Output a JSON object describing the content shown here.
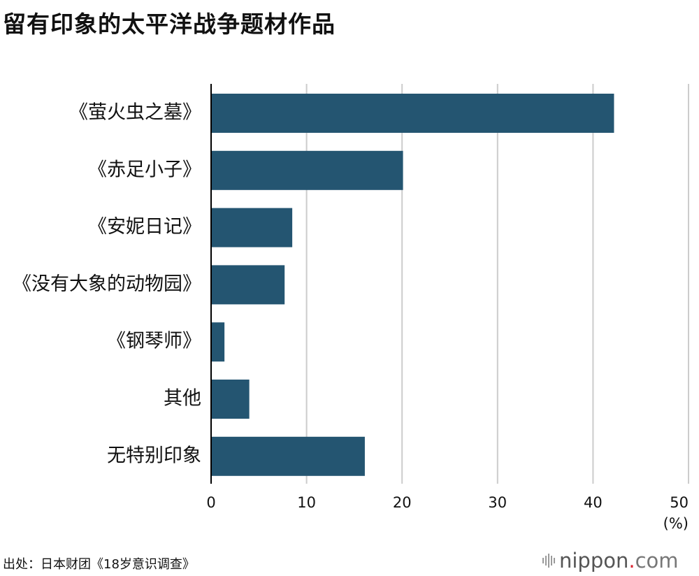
{
  "title": "留有印象的太平洋战争题材作品",
  "source": "出处：日本财团《18岁意识调查》",
  "logo": {
    "name": "nippon",
    "dot": ".",
    "domain": "com",
    "icon": "sound-bars-icon"
  },
  "colors": {
    "bar": "#245571",
    "grid": "#cccccc",
    "axis": "#000000",
    "logo_dot": "#d9232e"
  },
  "chart_data": {
    "type": "bar",
    "orientation": "horizontal",
    "title": "留有印象的太平洋战争题材作品",
    "categories": [
      "《萤火虫之墓》",
      "《赤足小子》",
      "《安妮日记》",
      "《没有大象的动物园》",
      "《钢琴师》",
      "其他",
      "无特别印象"
    ],
    "values": [
      42.2,
      20.1,
      8.5,
      7.7,
      1.4,
      4.0,
      16.1
    ],
    "xlim": [
      0,
      50
    ],
    "xticks": [
      0,
      10,
      20,
      30,
      40,
      50
    ],
    "xlabel": "",
    "unit_label": "(%)",
    "grid": true
  }
}
